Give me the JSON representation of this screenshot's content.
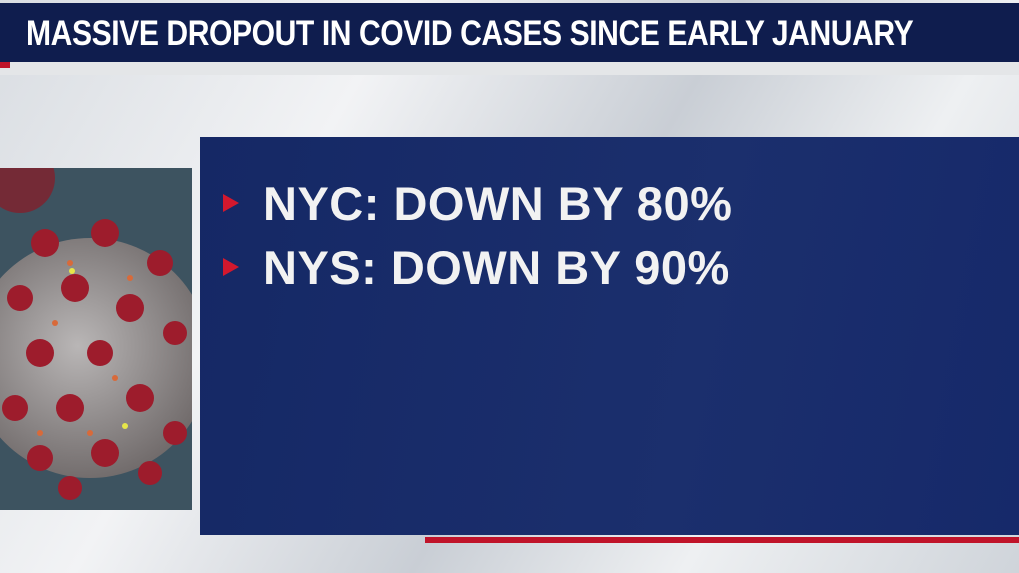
{
  "header": {
    "title": "MASSIVE DROPOUT IN COVID CASES SINCE EARLY JANUARY"
  },
  "bullets": [
    "NYC: DOWN BY 80%",
    "NYS: DOWN BY 90%"
  ]
}
